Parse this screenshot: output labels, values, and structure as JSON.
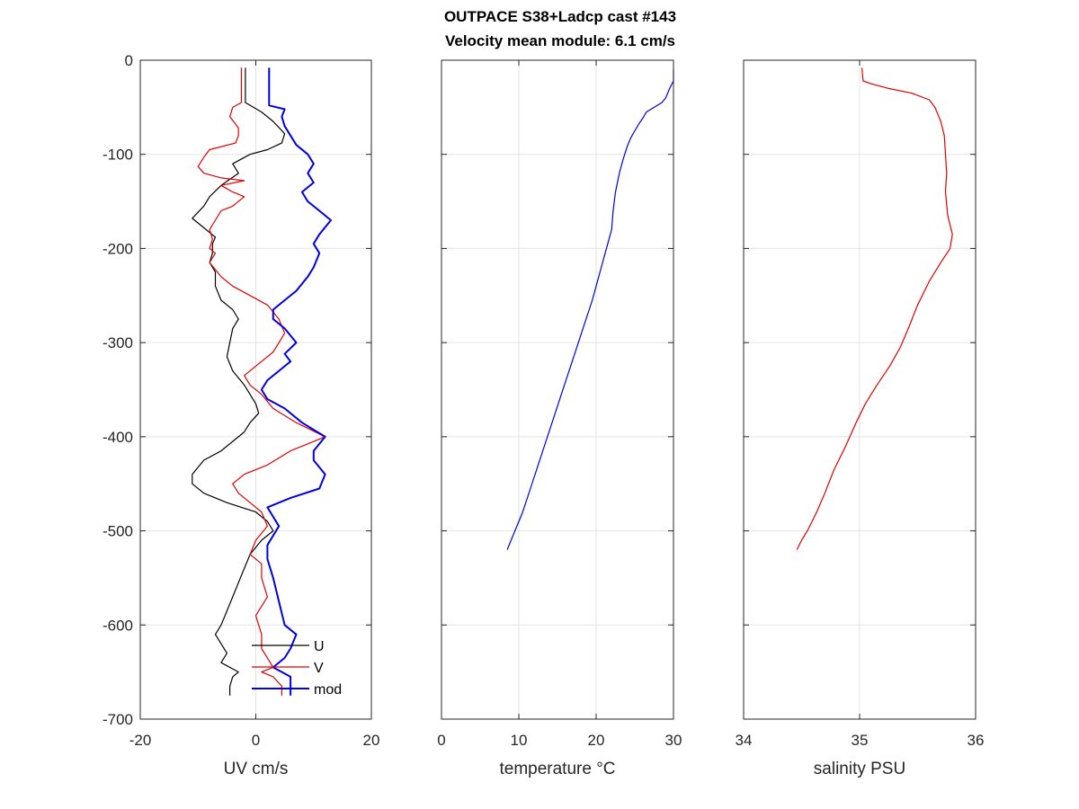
{
  "figure": {
    "title_line1": "OUTPACE S38+Ladcp cast #143",
    "title_line2": "Velocity mean module:  6.1 cm/s"
  },
  "colors": {
    "U": "#000000",
    "V": "#e00000",
    "mod": "#0000e0",
    "grid": "#e3e3e3",
    "axis": "#262626"
  },
  "chart_data": [
    {
      "type": "line",
      "xlabel": "UV cm/s",
      "ylabel": "",
      "xlim": [
        -20,
        20
      ],
      "ylim": [
        -700,
        0
      ],
      "xticks": [
        -20,
        0,
        20
      ],
      "yticks": [
        0,
        -100,
        -200,
        -300,
        -400,
        -500,
        -600,
        -700
      ],
      "grid": true,
      "legend": {
        "placement": "bottom-right",
        "entries": [
          "U",
          "V",
          "mod"
        ]
      },
      "series": [
        {
          "name": "U",
          "points": [
            [
              -1.8,
              -8
            ],
            [
              -1.8,
              -45
            ],
            [
              1,
              -55
            ],
            [
              3,
              -65
            ],
            [
              5,
              -78
            ],
            [
              4.5,
              -88
            ],
            [
              2,
              -95
            ],
            [
              -1,
              -100
            ],
            [
              -4,
              -110
            ],
            [
              -3,
              -120
            ],
            [
              -6,
              -133
            ],
            [
              -8,
              -145
            ],
            [
              -9,
              -155
            ],
            [
              -11,
              -168
            ],
            [
              -9,
              -178
            ],
            [
              -7,
              -188
            ],
            [
              -7.5,
              -195
            ],
            [
              -7.5,
              -205
            ],
            [
              -8,
              -215
            ],
            [
              -7,
              -225
            ],
            [
              -7,
              -240
            ],
            [
              -6,
              -255
            ],
            [
              -4,
              -265
            ],
            [
              -3,
              -275
            ],
            [
              -4,
              -285
            ],
            [
              -4.5,
              -300
            ],
            [
              -5,
              -315
            ],
            [
              -4,
              -330
            ],
            [
              -2,
              -345
            ],
            [
              -1,
              -355
            ],
            [
              0,
              -365
            ],
            [
              0.5,
              -375
            ],
            [
              -1,
              -385
            ],
            [
              -2,
              -395
            ],
            [
              -4,
              -405
            ],
            [
              -6,
              -415
            ],
            [
              -9,
              -425
            ],
            [
              -11,
              -440
            ],
            [
              -11,
              -450
            ],
            [
              -9,
              -460
            ],
            [
              -5,
              -470
            ],
            [
              0,
              -480
            ],
            [
              2,
              -490
            ],
            [
              3,
              -500
            ],
            [
              1,
              -510
            ],
            [
              -1,
              -525
            ],
            [
              -2,
              -540
            ],
            [
              -3,
              -555
            ],
            [
              -4,
              -570
            ],
            [
              -5,
              -585
            ],
            [
              -6,
              -600
            ],
            [
              -7,
              -610
            ],
            [
              -6,
              -620
            ],
            [
              -5,
              -630
            ],
            [
              -6,
              -640
            ],
            [
              -3,
              -650
            ],
            [
              -4,
              -655
            ],
            [
              -4.5,
              -665
            ],
            [
              -4.5,
              -675
            ]
          ]
        },
        {
          "name": "V",
          "points": [
            [
              -2.5,
              -8
            ],
            [
              -2.5,
              -45
            ],
            [
              -4,
              -50
            ],
            [
              -4.5,
              -60
            ],
            [
              -3,
              -72
            ],
            [
              -3,
              -80
            ],
            [
              -3.5,
              -88
            ],
            [
              -8,
              -95
            ],
            [
              -9,
              -103
            ],
            [
              -10,
              -113
            ],
            [
              -9,
              -120
            ],
            [
              -6,
              -125
            ],
            [
              -2,
              -128
            ],
            [
              -6,
              -133
            ],
            [
              -4,
              -140
            ],
            [
              -2,
              -145
            ],
            [
              -4,
              -155
            ],
            [
              -6,
              -160
            ],
            [
              -7,
              -170
            ],
            [
              -8,
              -180
            ],
            [
              -7.5,
              -190
            ],
            [
              -8,
              -200
            ],
            [
              -7,
              -205
            ],
            [
              -8,
              -215
            ],
            [
              -6,
              -230
            ],
            [
              -4,
              -240
            ],
            [
              -1,
              -250
            ],
            [
              2,
              -260
            ],
            [
              4,
              -275
            ],
            [
              5,
              -290
            ],
            [
              3,
              -310
            ],
            [
              0,
              -325
            ],
            [
              -2,
              -335
            ],
            [
              -1,
              -345
            ],
            [
              1,
              -355
            ],
            [
              3,
              -370
            ],
            [
              7,
              -385
            ],
            [
              12,
              -400
            ],
            [
              6,
              -415
            ],
            [
              2,
              -430
            ],
            [
              -2,
              -440
            ],
            [
              -4,
              -450
            ],
            [
              -3,
              -460
            ],
            [
              -1,
              -470
            ],
            [
              1,
              -480
            ],
            [
              2,
              -495
            ],
            [
              0,
              -510
            ],
            [
              -1,
              -525
            ],
            [
              1,
              -535
            ],
            [
              1,
              -550
            ],
            [
              2,
              -570
            ],
            [
              0,
              -590
            ],
            [
              1,
              -610
            ],
            [
              1,
              -625
            ],
            [
              2,
              -635
            ],
            [
              3,
              -645
            ],
            [
              1,
              -650
            ],
            [
              3,
              -655
            ],
            [
              4.5,
              -665
            ],
            [
              4.5,
              -675
            ]
          ]
        },
        {
          "name": "mod",
          "points": [
            [
              2.3,
              -8
            ],
            [
              2.3,
              -48
            ],
            [
              5,
              -52
            ],
            [
              4.5,
              -60
            ],
            [
              5,
              -70
            ],
            [
              6,
              -80
            ],
            [
              7,
              -90
            ],
            [
              9,
              -100
            ],
            [
              10,
              -110
            ],
            [
              9,
              -120
            ],
            [
              10,
              -130
            ],
            [
              8,
              -140
            ],
            [
              9,
              -150
            ],
            [
              11,
              -160
            ],
            [
              13,
              -170
            ],
            [
              11,
              -185
            ],
            [
              10,
              -195
            ],
            [
              11,
              -205
            ],
            [
              10,
              -220
            ],
            [
              9,
              -230
            ],
            [
              7,
              -245
            ],
            [
              5,
              -255
            ],
            [
              3,
              -265
            ],
            [
              3,
              -275
            ],
            [
              5,
              -285
            ],
            [
              7,
              -300
            ],
            [
              5,
              -312
            ],
            [
              6,
              -320
            ],
            [
              4,
              -330
            ],
            [
              2,
              -340
            ],
            [
              1,
              -350
            ],
            [
              2,
              -360
            ],
            [
              5,
              -370
            ],
            [
              8,
              -385
            ],
            [
              12,
              -400
            ],
            [
              10,
              -415
            ],
            [
              10,
              -425
            ],
            [
              12,
              -440
            ],
            [
              11,
              -455
            ],
            [
              6,
              -465
            ],
            [
              2,
              -475
            ],
            [
              3,
              -485
            ],
            [
              4,
              -495
            ],
            [
              3,
              -505
            ],
            [
              2,
              -515
            ],
            [
              2,
              -530
            ],
            [
              3,
              -550
            ],
            [
              4,
              -575
            ],
            [
              5,
              -600
            ],
            [
              7,
              -610
            ],
            [
              6,
              -625
            ],
            [
              5,
              -635
            ],
            [
              3,
              -645
            ],
            [
              6,
              -655
            ],
            [
              6,
              -665
            ],
            [
              6,
              -675
            ]
          ]
        }
      ]
    },
    {
      "type": "line",
      "xlabel": "temperature °C",
      "ylabel": "",
      "xlim": [
        0,
        30
      ],
      "ylim": [
        -700,
        0
      ],
      "xticks": [
        0,
        10,
        20,
        30
      ],
      "grid": true,
      "series": [
        {
          "name": "",
          "points": [
            [
              30,
              -10
            ],
            [
              30,
              -22
            ],
            [
              29.5,
              -30
            ],
            [
              29,
              -40
            ],
            [
              28.5,
              -45
            ],
            [
              27.5,
              -50
            ],
            [
              26.5,
              -55
            ],
            [
              26,
              -62
            ],
            [
              25.5,
              -68
            ],
            [
              25,
              -75
            ],
            [
              24.5,
              -82
            ],
            [
              24,
              -92
            ],
            [
              23.5,
              -105
            ],
            [
              23,
              -120
            ],
            [
              22.5,
              -140
            ],
            [
              22.2,
              -160
            ],
            [
              22,
              -180
            ],
            [
              21.5,
              -195
            ],
            [
              21,
              -210
            ],
            [
              20.5,
              -225
            ],
            [
              20,
              -240
            ],
            [
              19.5,
              -255
            ],
            [
              18.5,
              -280
            ],
            [
              17.5,
              -305
            ],
            [
              16.5,
              -330
            ],
            [
              15.5,
              -355
            ],
            [
              14.5,
              -380
            ],
            [
              13.5,
              -405
            ],
            [
              12.5,
              -430
            ],
            [
              11.5,
              -455
            ],
            [
              10.5,
              -480
            ],
            [
              9.5,
              -500
            ],
            [
              9,
              -510
            ],
            [
              8.5,
              -520
            ]
          ]
        }
      ]
    },
    {
      "type": "line",
      "xlabel": "salinity PSU",
      "ylabel": "",
      "xlim": [
        34,
        36
      ],
      "ylim": [
        -700,
        0
      ],
      "xticks": [
        34,
        35,
        36
      ],
      "grid": true,
      "series": [
        {
          "name": "",
          "points": [
            [
              35.02,
              -8
            ],
            [
              35.03,
              -22
            ],
            [
              35.1,
              -25
            ],
            [
              35.25,
              -30
            ],
            [
              35.45,
              -35
            ],
            [
              35.6,
              -42
            ],
            [
              35.65,
              -50
            ],
            [
              35.7,
              -65
            ],
            [
              35.73,
              -80
            ],
            [
              35.74,
              -100
            ],
            [
              35.75,
              -120
            ],
            [
              35.74,
              -140
            ],
            [
              35.76,
              -165
            ],
            [
              35.8,
              -185
            ],
            [
              35.78,
              -200
            ],
            [
              35.7,
              -215
            ],
            [
              35.6,
              -235
            ],
            [
              35.5,
              -260
            ],
            [
              35.42,
              -285
            ],
            [
              35.35,
              -305
            ],
            [
              35.26,
              -325
            ],
            [
              35.15,
              -345
            ],
            [
              35.05,
              -365
            ],
            [
              34.97,
              -385
            ],
            [
              34.88,
              -410
            ],
            [
              34.78,
              -435
            ],
            [
              34.7,
              -460
            ],
            [
              34.63,
              -480
            ],
            [
              34.55,
              -500
            ],
            [
              34.5,
              -510
            ],
            [
              34.46,
              -520
            ]
          ]
        }
      ]
    }
  ]
}
